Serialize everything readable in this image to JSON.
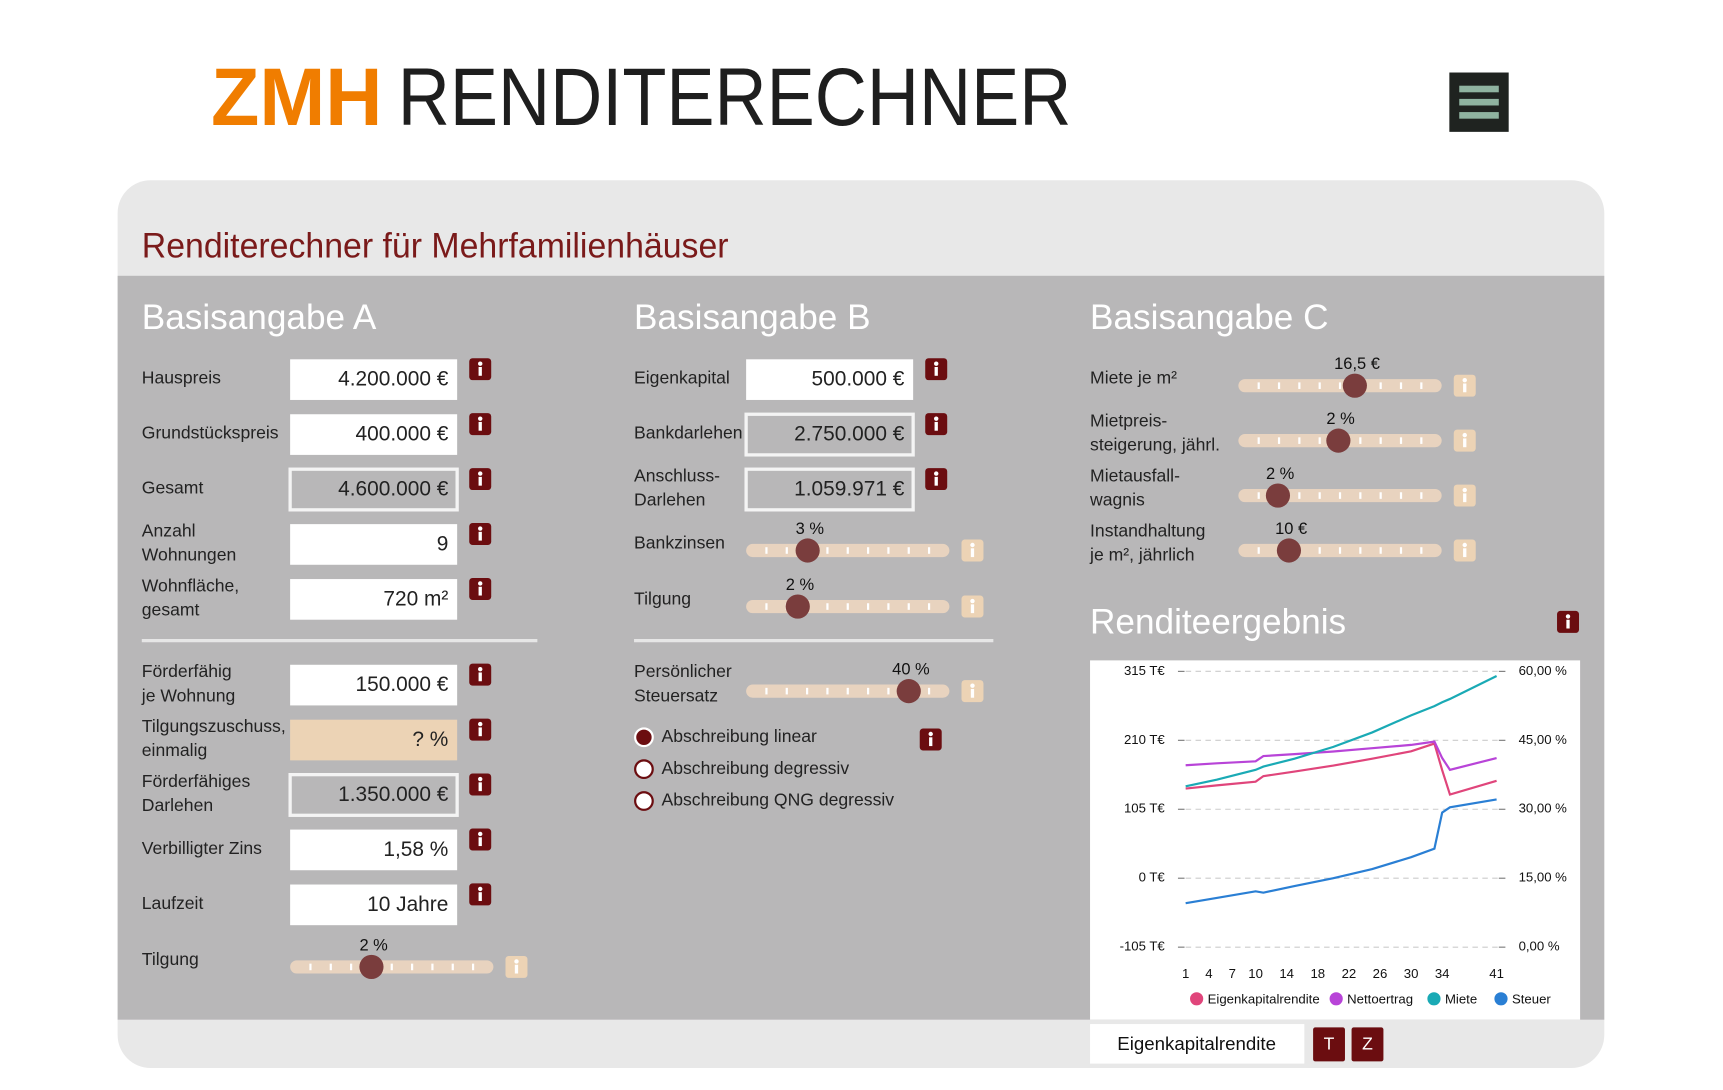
{
  "header": {
    "brand": "ZMH",
    "title": "RENDITERECHNER"
  },
  "page_title": "Renditerechner für Mehrfamilienhäuser",
  "section_a": {
    "title": "Basisangabe A",
    "fields": [
      {
        "label": [
          "Hauspreis"
        ],
        "value": "4.200.000 €"
      },
      {
        "label": [
          "Grundstückspreis"
        ],
        "value": "400.000 €"
      },
      {
        "label": [
          "Gesamt"
        ],
        "value": "4.600.000 €"
      },
      {
        "label": [
          "Anzahl",
          "Wohnungen"
        ],
        "value": "9"
      },
      {
        "label": [
          "Wohnfläche,",
          "gesamt"
        ],
        "value": "720 m²"
      },
      {
        "label": [
          "Förderfähig",
          "je Wohnung"
        ],
        "value": "150.000 €"
      },
      {
        "label": [
          "Tilgungszuschuss,",
          "einmalig"
        ],
        "value": "? %"
      },
      {
        "label": [
          "Förderfähiges",
          "Darlehen"
        ],
        "value": "1.350.000 €"
      },
      {
        "label": [
          "Verbilligter Zins"
        ],
        "value": "1,58 %"
      },
      {
        "label": [
          "Laufzeit"
        ],
        "value": "10 Jahre"
      }
    ],
    "sliders": [
      {
        "label": [
          "Tilgung"
        ],
        "value": "2 %"
      }
    ]
  },
  "section_b": {
    "title": "Basisangabe B",
    "fields": [
      {
        "label": [
          "Eigenkapital"
        ],
        "value": "500.000 €"
      },
      {
        "label": [
          "Bankdarlehen"
        ],
        "value": "2.750.000 €"
      },
      {
        "label": [
          "Anschluss-",
          "Darlehen"
        ],
        "value": "1.059.971 €"
      }
    ],
    "sliders": [
      {
        "label": [
          "Bankzinsen"
        ],
        "value": "3 %"
      },
      {
        "label": [
          "Tilgung"
        ],
        "value": "2 %"
      },
      {
        "label": [
          "Persönlicher",
          "Steuersatz"
        ],
        "value": "40 %"
      }
    ],
    "radios": [
      "Abschreibung linear",
      "Abschreibung degressiv",
      "Abschreibung QNG degressiv"
    ]
  },
  "section_c": {
    "title": "Basisangabe C",
    "sliders": [
      {
        "label": [
          "Miete je m²"
        ],
        "value": "16,5 €"
      },
      {
        "label": [
          "Mietpreis-",
          "steigerung, jährl."
        ],
        "value": "2 %"
      },
      {
        "label": [
          "Mietausfall-",
          "wagnis"
        ],
        "value": "2 %"
      },
      {
        "label": [
          "Instandhaltung",
          "je m², jährlich"
        ],
        "value": "10 €"
      }
    ]
  },
  "result": {
    "title": "Renditeergebnis",
    "selector": "Eigenkapitalrendite",
    "buttons": [
      "T",
      "Z"
    ]
  },
  "chart_data": {
    "type": "line",
    "x": [
      1,
      5,
      10,
      11,
      15,
      20,
      25,
      30,
      33,
      34,
      35,
      41
    ],
    "xlim": [
      1,
      41
    ],
    "xticks": [
      1,
      4,
      7,
      10,
      14,
      18,
      22,
      26,
      30,
      34,
      41
    ],
    "ylim": [
      -105,
      315
    ],
    "yticks": [
      {
        "value": -105,
        "label": "-105 T€"
      },
      {
        "value": 0,
        "label": "0 T€"
      },
      {
        "value": 105,
        "label": "105 T€"
      },
      {
        "value": 210,
        "label": "210 T€"
      },
      {
        "value": 315,
        "label": "315 T€"
      }
    ],
    "y2lim": [
      0,
      60
    ],
    "y2ticks": [
      {
        "value": 0,
        "label": "0,00 %"
      },
      {
        "value": 15,
        "label": "15,00 %"
      },
      {
        "value": 30,
        "label": "30,00 %"
      },
      {
        "value": 45,
        "label": "45,00 %"
      },
      {
        "value": 60,
        "label": "60,00 %"
      }
    ],
    "grid": true,
    "series": [
      {
        "name": "Eigenkapitalrendite",
        "color": "#e0457b",
        "axis": "y2",
        "values": [
          34.5,
          35.2,
          36,
          37.2,
          38.2,
          39.5,
          41,
          42.6,
          44.3,
          38.5,
          33.2,
          36.2
        ]
      },
      {
        "name": "Nettoertrag",
        "color": "#b844d8",
        "values": [
          172,
          175,
          178,
          186,
          189,
          193,
          198,
          203,
          208,
          183,
          165,
          183
        ]
      },
      {
        "name": "Miete",
        "color": "#1aaab5",
        "values": [
          140,
          150,
          165,
          170,
          182,
          200,
          222,
          248,
          262,
          268,
          273,
          308
        ]
      },
      {
        "name": "Steuer",
        "color": "#2a7fd4",
        "values": [
          -38,
          -30,
          -20,
          -22,
          -12,
          0,
          14,
          32,
          45,
          100,
          108,
          120
        ]
      }
    ]
  }
}
